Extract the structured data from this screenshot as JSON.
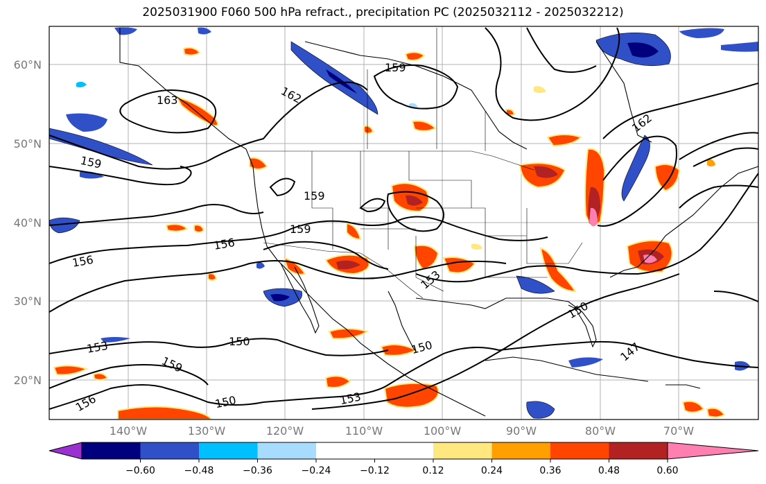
{
  "title": "2025031900 F060 500 hPa refract., precipitation PC (2025032112 - 2025032212)",
  "lat_labels": [
    "60°N",
    "50°N",
    "40°N",
    "30°N",
    "20°N"
  ],
  "lon_labels": [
    "140°W",
    "130°W",
    "120°W",
    "110°W",
    "100°W",
    "90°W",
    "80°W",
    "70°W"
  ],
  "contour_labels": [
    "162",
    "163",
    "159",
    "159",
    "159",
    "159",
    "156",
    "156",
    "162",
    "153",
    "150",
    "150",
    "153",
    "159",
    "156",
    "150",
    "153",
    "147",
    "150"
  ],
  "colorbar": {
    "ticks": [
      "−0.60",
      "−0.48",
      "−0.36",
      "−0.24",
      "−0.12",
      "0.12",
      "0.24",
      "0.36",
      "0.48",
      "0.60"
    ],
    "colors": [
      "#9b30d0",
      "#00007f",
      "#3050c8",
      "#00bfff",
      "#a8dcff",
      "#ffffff",
      "#ffe880",
      "#ff9f00",
      "#ff4500",
      "#b22222",
      "#ff80b0"
    ]
  }
}
